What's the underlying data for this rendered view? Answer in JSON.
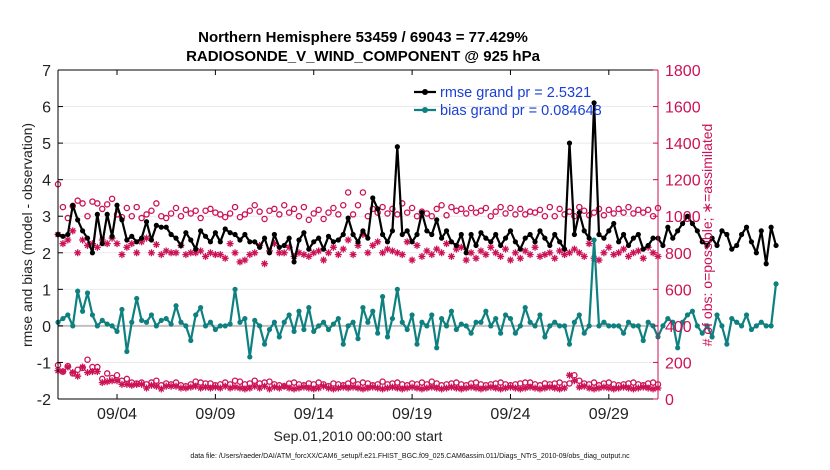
{
  "chart_data": {
    "type": "line",
    "title": "Northern Hemisphere 53459 / 69043 = 77.429%",
    "subtitle": "RADIOSONDE_V_WIND_COMPONENT @ 925 hPa",
    "xlabel": "Sep.01,2010 00:00:00 start",
    "ylabel_left": "rmse and bias (model - observation)",
    "ylabel_right": "# of obs: o=possible; ∗=assimilated",
    "footer": "data file: /Users/raeder/DAI/ATM_forcXX/CAM6_setup/f.e21.FHIST_BGC.f09_025.CAM6assim.011/Diags_NTrS_2010-09/obs_diag_output.nc",
    "xlim": [
      1,
      31.5
    ],
    "ylim_left": [
      -2,
      7
    ],
    "ylim_right": [
      0,
      1800
    ],
    "x_ticks": [
      4,
      9,
      14,
      19,
      24,
      29
    ],
    "x_tick_labels": [
      "09/04",
      "09/09",
      "09/14",
      "09/19",
      "09/24",
      "09/29"
    ],
    "y_left_ticks": [
      -2,
      -1,
      0,
      1,
      2,
      3,
      4,
      5,
      6,
      7
    ],
    "y_right_ticks": [
      0,
      200,
      400,
      600,
      800,
      1000,
      1200,
      1400,
      1600,
      1800
    ],
    "legend": [
      "rmse grand pr = 2.5321",
      "bias grand pr = 0.084648"
    ],
    "colors": {
      "rmse": "#000000",
      "bias": "#0f8080",
      "obs": "#cc1155",
      "zero": "#c0c0c0"
    },
    "x_start": 1,
    "x_step": 0.25,
    "series": [
      {
        "name": "rmse",
        "axis": "left",
        "values": [
          2.5,
          2.45,
          2.5,
          3.3,
          2.9,
          2.6,
          2.4,
          2.0,
          3.05,
          2.25,
          3.05,
          2.45,
          3.3,
          2.9,
          2.35,
          2.45,
          2.3,
          2.4,
          2.85,
          2.35,
          2.75,
          2.7,
          2.7,
          2.5,
          2.4,
          2.2,
          2.55,
          2.35,
          2.1,
          2.6,
          2.45,
          2.3,
          2.55,
          2.3,
          2.65,
          2.55,
          2.5,
          2.35,
          2.5,
          2.3,
          2.3,
          2.15,
          2.4,
          2.0,
          2.5,
          2.15,
          2.2,
          2.4,
          1.75,
          2.35,
          2.55,
          2.1,
          2.3,
          2.4,
          2.1,
          2.45,
          2.3,
          2.35,
          2.5,
          2.95,
          2.5,
          2.3,
          2.6,
          2.4,
          3.5,
          3.2,
          2.5,
          2.3,
          2.6,
          4.9,
          2.5,
          2.6,
          2.3,
          2.5,
          3.1,
          2.6,
          2.5,
          2.9,
          2.4,
          2.6,
          2.3,
          2.2,
          2.5,
          2.0,
          2.5,
          2.2,
          2.55,
          2.4,
          2.3,
          2.5,
          2.2,
          2.4,
          2.6,
          2.3,
          2.1,
          2.4,
          2.5,
          2.3,
          2.6,
          2.4,
          2.2,
          2.5,
          2.3,
          2.1,
          5.0,
          2.5,
          3.1,
          2.6,
          2.4,
          6.1,
          2.5,
          2.4,
          2.6,
          2.8,
          2.3,
          2.5,
          2.2,
          2.4,
          2.5,
          2.1,
          2.2,
          2.4,
          2.4,
          2.2,
          2.7,
          2.4,
          2.6,
          2.8,
          3.0,
          2.8,
          2.6,
          2.3,
          2.2,
          2.4,
          2.2,
          2.6,
          2.5,
          2.1,
          2.2,
          2.5,
          2.7,
          2.3,
          2.0,
          2.6,
          1.7,
          2.7,
          2.2
        ]
      },
      {
        "name": "bias",
        "axis": "left",
        "values": [
          0.1,
          0.2,
          0.3,
          0.0,
          0.95,
          0.4,
          0.9,
          0.3,
          0.0,
          0.15,
          0.05,
          0.0,
          -0.15,
          0.45,
          -0.7,
          0.1,
          0.75,
          0.15,
          0.1,
          0.3,
          0.0,
          0.15,
          0.2,
          0.05,
          0.55,
          0.1,
          0.0,
          -0.4,
          0.3,
          0.5,
          0.0,
          0.1,
          -0.1,
          0.0,
          0.0,
          0.05,
          1.0,
          0.1,
          0.2,
          -0.85,
          0.15,
          0.0,
          -0.5,
          -0.1,
          0.1,
          -0.3,
          0.1,
          0.3,
          -0.15,
          0.4,
          -0.1,
          0.5,
          -0.15,
          0.0,
          0.1,
          -0.1,
          0.05,
          0.2,
          -0.5,
          0.0,
          0.1,
          -0.35,
          0.5,
          0.1,
          0.4,
          -0.2,
          0.8,
          -0.3,
          0.2,
          1.0,
          0.1,
          -0.1,
          0.3,
          -0.5,
          0.1,
          0.0,
          0.3,
          -0.6,
          0.2,
          0.0,
          0.4,
          -0.1,
          0.05,
          0.0,
          -0.2,
          0.1,
          0.1,
          0.4,
          0.0,
          0.2,
          -0.2,
          0.3,
          0.2,
          -0.2,
          0.0,
          0.5,
          0.1,
          0.0,
          0.3,
          -0.3,
          0.0,
          0.1,
          0.0,
          0.0,
          -0.5,
          0.1,
          0.3,
          -0.2,
          0.0,
          2.35,
          0.0,
          0.1,
          0.0,
          0.0,
          0.0,
          -0.2,
          0.1,
          0.0,
          0.0,
          -0.4,
          0.1,
          0.0,
          -0.3,
          0.0,
          0.2,
          0.1,
          -0.6,
          0.1,
          0.3,
          0.4,
          0.0,
          -0.2,
          0.0,
          -0.3,
          0.3,
          0.0,
          -0.5,
          0.2,
          0.1,
          0.0,
          0.3,
          -0.1,
          0.0,
          0.1,
          0.0,
          0.0,
          1.15
        ]
      },
      {
        "name": "possible",
        "axis": "right",
        "values": [
          1175,
          1050,
          990,
          1055,
          1085,
          1070,
          1000,
          1080,
          1070,
          1040,
          1065,
          1095,
          1010,
          995,
          1045,
          1000,
          1050,
          990,
          1010,
          1030,
          1070,
          1000,
          990,
          1015,
          1045,
          1000,
          1035,
          1015,
          1030,
          990,
          1030,
          1040,
          1020,
          1010,
          995,
          1015,
          1050,
          995,
          1010,
          1030,
          1060,
          1025,
          985,
          1030,
          1040,
          1010,
          1060,
          1020,
          1040,
          1000,
          1050,
          980,
          1015,
          1035,
          985,
          1020,
          1045,
          1010,
          1060,
          1130,
          1010,
          1060,
          1130,
          1000,
          1040,
          1020,
          1050,
          1015,
          1040,
          1010,
          1070,
          1020,
          1045,
          1000,
          1025,
          1015,
          1000,
          1040,
          1060,
          1005,
          1050,
          1030,
          1040,
          1015,
          1045,
          1020,
          1030,
          1045,
          1000,
          1025,
          1050,
          1015,
          1045,
          1010,
          1040,
          1010,
          1025,
          1020,
          1035,
          1000,
          1050,
          1000,
          1040,
          1010,
          1025,
          1000,
          1050,
          1030,
          1005,
          1020,
          1040,
          1005,
          1035,
          1015,
          1040,
          1020,
          1050,
          1015,
          1035,
          1020,
          1035,
          1000,
          1045,
          1010,
          1030,
          1005,
          1050,
          1015,
          1045,
          1020,
          1050,
          1030,
          1000,
          1025,
          1045,
          1010,
          1035,
          1005,
          1040,
          1020,
          1000,
          1030,
          1040,
          1010,
          1030,
          1000,
          1030,
          0
        ]
      },
      {
        "name": "assimilated",
        "axis": "right",
        "values": [
          900,
          850,
          870,
          920,
          800,
          870,
          840,
          850,
          830,
          870,
          850,
          880,
          850,
          790,
          830,
          850,
          800,
          860,
          880,
          800,
          845,
          790,
          810,
          800,
          800,
          840,
          790,
          800,
          800,
          810,
          780,
          800,
          790,
          790,
          770,
          850,
          800,
          750,
          760,
          790,
          800,
          840,
          740,
          810,
          850,
          800,
          800,
          830,
          780,
          800,
          790,
          780,
          800,
          810,
          760,
          800,
          830,
          790,
          820,
          870,
          790,
          840,
          900,
          800,
          840,
          860,
          800,
          820,
          810,
          800,
          790,
          860,
          760,
          840,
          780,
          810,
          790,
          820,
          800,
          850,
          780,
          820,
          830,
          760,
          800,
          770,
          810,
          790,
          830,
          800,
          780,
          820,
          760,
          800,
          770,
          810,
          790,
          830,
          780,
          790,
          800,
          770,
          810,
          790,
          800,
          820,
          800,
          780,
          850,
          770,
          760,
          800,
          830,
          790,
          800,
          820,
          780,
          800,
          810,
          770,
          830,
          800,
          780,
          790,
          810,
          800,
          790,
          800,
          820,
          770,
          800,
          830,
          800,
          790,
          780,
          800,
          770,
          810,
          800,
          790,
          790,
          800,
          760,
          800,
          800,
          780,
          0
        ]
      },
      {
        "name": "possible_low",
        "axis": "right",
        "values": [
          185,
          150,
          180,
          140,
          160,
          170,
          215,
          175,
          175,
          110,
          140,
          115,
          130,
          100,
          110,
          90,
          85,
          90,
          80,
          90,
          100,
          75,
          85,
          80,
          90,
          75,
          70,
          80,
          95,
          90,
          85,
          85,
          75,
          80,
          90,
          80,
          100,
          95,
          80,
          85,
          100,
          85,
          90,
          95,
          80,
          75,
          70,
          85,
          90,
          80,
          75,
          85,
          80,
          90,
          80,
          70,
          85,
          80,
          75,
          85,
          100,
          80,
          90,
          85,
          75,
          80,
          95,
          80,
          85,
          90,
          80,
          75,
          85,
          80,
          90,
          80,
          95,
          85,
          75,
          80,
          85,
          90,
          80,
          75,
          85,
          90,
          80,
          75,
          80,
          85,
          90,
          80,
          75,
          80,
          85,
          90,
          90,
          80,
          75,
          85,
          80,
          85,
          90,
          80,
          85,
          130,
          100,
          85,
          80,
          90,
          75,
          85,
          90,
          80,
          75,
          80,
          85,
          90,
          80,
          75,
          85,
          90,
          80,
          75,
          80,
          100,
          110,
          85,
          90,
          80,
          100,
          115,
          85,
          90,
          100,
          90,
          105,
          110,
          95,
          100,
          85,
          90,
          95,
          80,
          85,
          90,
          0
        ]
      },
      {
        "name": "assimilated_low",
        "axis": "right",
        "values": [
          155,
          150,
          175,
          145,
          125,
          175,
          145,
          150,
          150,
          90,
          95,
          100,
          100,
          80,
          80,
          75,
          80,
          80,
          60,
          75,
          70,
          55,
          70,
          70,
          70,
          60,
          60,
          65,
          70,
          60,
          65,
          60,
          65,
          60,
          70,
          60,
          65,
          60,
          55,
          60,
          70,
          60,
          70,
          55,
          65,
          60,
          70,
          60,
          55,
          60,
          65,
          60,
          55,
          60,
          70,
          60,
          55,
          60,
          65,
          60,
          65,
          60,
          55,
          60,
          65,
          60,
          55,
          60,
          65,
          60,
          55,
          60,
          65,
          60,
          55,
          60,
          65,
          60,
          55,
          60,
          65,
          60,
          55,
          60,
          65,
          60,
          55,
          60,
          65,
          60,
          55,
          60,
          65,
          60,
          55,
          60,
          65,
          60,
          55,
          60,
          65,
          60,
          55,
          60,
          130,
          100,
          65,
          70,
          60,
          55,
          60,
          65,
          60,
          55,
          60,
          65,
          60,
          55,
          60,
          65,
          60,
          55,
          60,
          65,
          60,
          80,
          95,
          75,
          80,
          70,
          75,
          90,
          70,
          75,
          80,
          70,
          85,
          90,
          75,
          80,
          65,
          70,
          75,
          65,
          70,
          75,
          0
        ]
      }
    ]
  }
}
